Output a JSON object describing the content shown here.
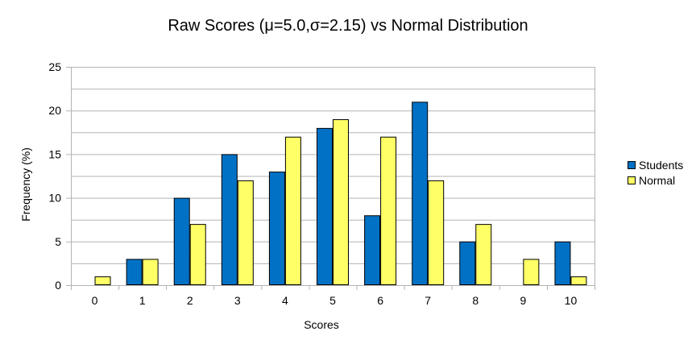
{
  "chart_data": {
    "type": "bar",
    "title": "Raw Scores (μ=5.0,σ=2.15) vs Normal Distribution",
    "xlabel": "Scores",
    "ylabel": "Frequency (%)",
    "categories": [
      "0",
      "1",
      "2",
      "3",
      "4",
      "5",
      "6",
      "7",
      "8",
      "9",
      "10"
    ],
    "series": [
      {
        "name": "Students",
        "color": "#0071c5",
        "values": [
          0,
          3,
          10,
          15,
          13,
          18,
          8,
          21,
          5,
          0,
          5
        ]
      },
      {
        "name": "Normal",
        "color": "#ffff66",
        "values": [
          1,
          3,
          7,
          12,
          17,
          19,
          17,
          12,
          7,
          3,
          1
        ]
      }
    ],
    "ylim": [
      0,
      25
    ],
    "yticks": [
      0,
      5,
      10,
      15,
      20,
      25
    ],
    "grid": true,
    "legend_position": "right"
  }
}
